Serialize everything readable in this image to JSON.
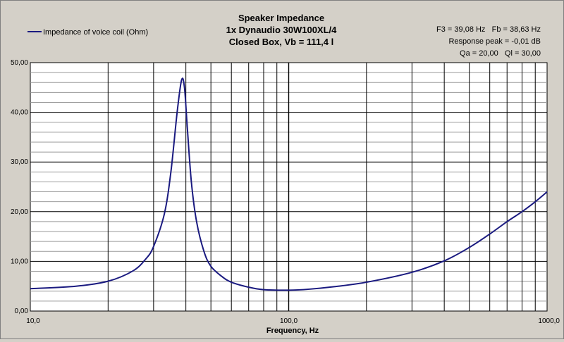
{
  "chart_data": {
    "type": "line",
    "title_lines": [
      "Speaker Impedance",
      "1x Dynaudio 30W100XL/4",
      "Closed Box, Vb = 111,4 l"
    ],
    "info_lines": [
      "F3 = 39,08 Hz   Fb = 38,63 Hz",
      "Response peak = -0,01 dB",
      "Qa = 20,00   Ql = 30,00"
    ],
    "xlabel": "Frequency, Hz",
    "ylabel": "",
    "x_scale": "log",
    "xlim": [
      10,
      1000
    ],
    "ylim": [
      0,
      50
    ],
    "x_tick_values": [
      10,
      100,
      1000
    ],
    "x_tick_labels": [
      "10,0",
      "100,0",
      "1000,0"
    ],
    "y_tick_values": [
      0,
      10,
      20,
      30,
      40,
      50
    ],
    "y_tick_labels": [
      "0,00",
      "10,00",
      "20,00",
      "30,00",
      "40,00",
      "50,00"
    ],
    "grid": true,
    "legend_position": "top-left",
    "line_color": "#1a1a80",
    "series": [
      {
        "name": "Impedance of voice coil (Ohm)",
        "x": [
          10,
          15,
          20,
          25,
          28,
          30,
          33,
          35,
          37,
          38.5,
          39.5,
          40.5,
          42,
          44,
          47,
          50,
          55,
          60,
          70,
          80,
          100,
          120,
          150,
          200,
          300,
          400,
          500,
          600,
          700,
          800,
          900,
          1000
        ],
        "y": [
          4.5,
          5.0,
          6.0,
          8.1,
          10.5,
          13.0,
          19.5,
          28.0,
          40.0,
          46.5,
          45.0,
          37.0,
          26.0,
          18.0,
          12.0,
          9.0,
          7.0,
          5.8,
          4.8,
          4.3,
          4.2,
          4.4,
          4.9,
          5.8,
          7.8,
          10.1,
          12.8,
          15.5,
          18.0,
          20.0,
          22.0,
          24.0
        ]
      }
    ]
  }
}
